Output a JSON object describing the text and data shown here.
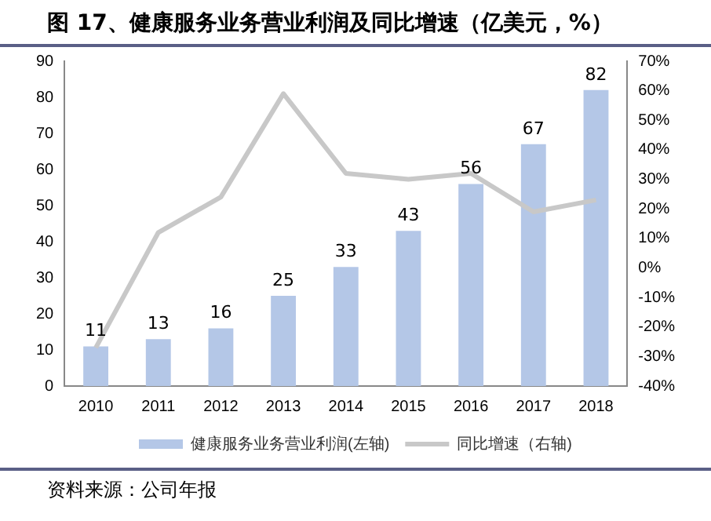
{
  "chart_data": {
    "type": "bar",
    "title": "图 17、健康服务业务营业利润及同比增速（亿美元，%）",
    "categories": [
      "2010",
      "2011",
      "2012",
      "2013",
      "2014",
      "2015",
      "2016",
      "2017",
      "2018"
    ],
    "series": [
      {
        "name": "健康服务业务营业利润(左轴)",
        "color": "#b4c7e7",
        "values": [
          11,
          13,
          16,
          25,
          33,
          43,
          56,
          67,
          82
        ],
        "value_labels": [
          "11",
          "13",
          "16",
          "25",
          "33",
          "43",
          "56",
          "67",
          "82"
        ]
      },
      {
        "name": "同比增速（右轴)",
        "type": "line",
        "axis": "y2",
        "color": "#c8c8c8",
        "values": [
          -27,
          12,
          24,
          59,
          32,
          30,
          32,
          19,
          23
        ]
      }
    ],
    "ylim": [
      0,
      90
    ],
    "yticks": [
      0,
      10,
      20,
      30,
      40,
      50,
      60,
      70,
      80,
      90
    ],
    "y2lim": [
      -40,
      70
    ],
    "y2ticks": [
      {
        "value": -40,
        "label": "-40%"
      },
      {
        "value": -30,
        "label": "-30%"
      },
      {
        "value": -20,
        "label": "-20%"
      },
      {
        "value": -10,
        "label": "-10%"
      },
      {
        "value": 0,
        "label": "0%"
      },
      {
        "value": 10,
        "label": "10%"
      },
      {
        "value": 20,
        "label": "20%"
      },
      {
        "value": 30,
        "label": "30%"
      },
      {
        "value": 40,
        "label": "40%"
      },
      {
        "value": 50,
        "label": "50%"
      },
      {
        "value": 60,
        "label": "60%"
      },
      {
        "value": 70,
        "label": "70%"
      }
    ],
    "grid": false,
    "legend": "bottom",
    "marker": "none",
    "annotations": [
      "资料来源：公司年报"
    ]
  }
}
